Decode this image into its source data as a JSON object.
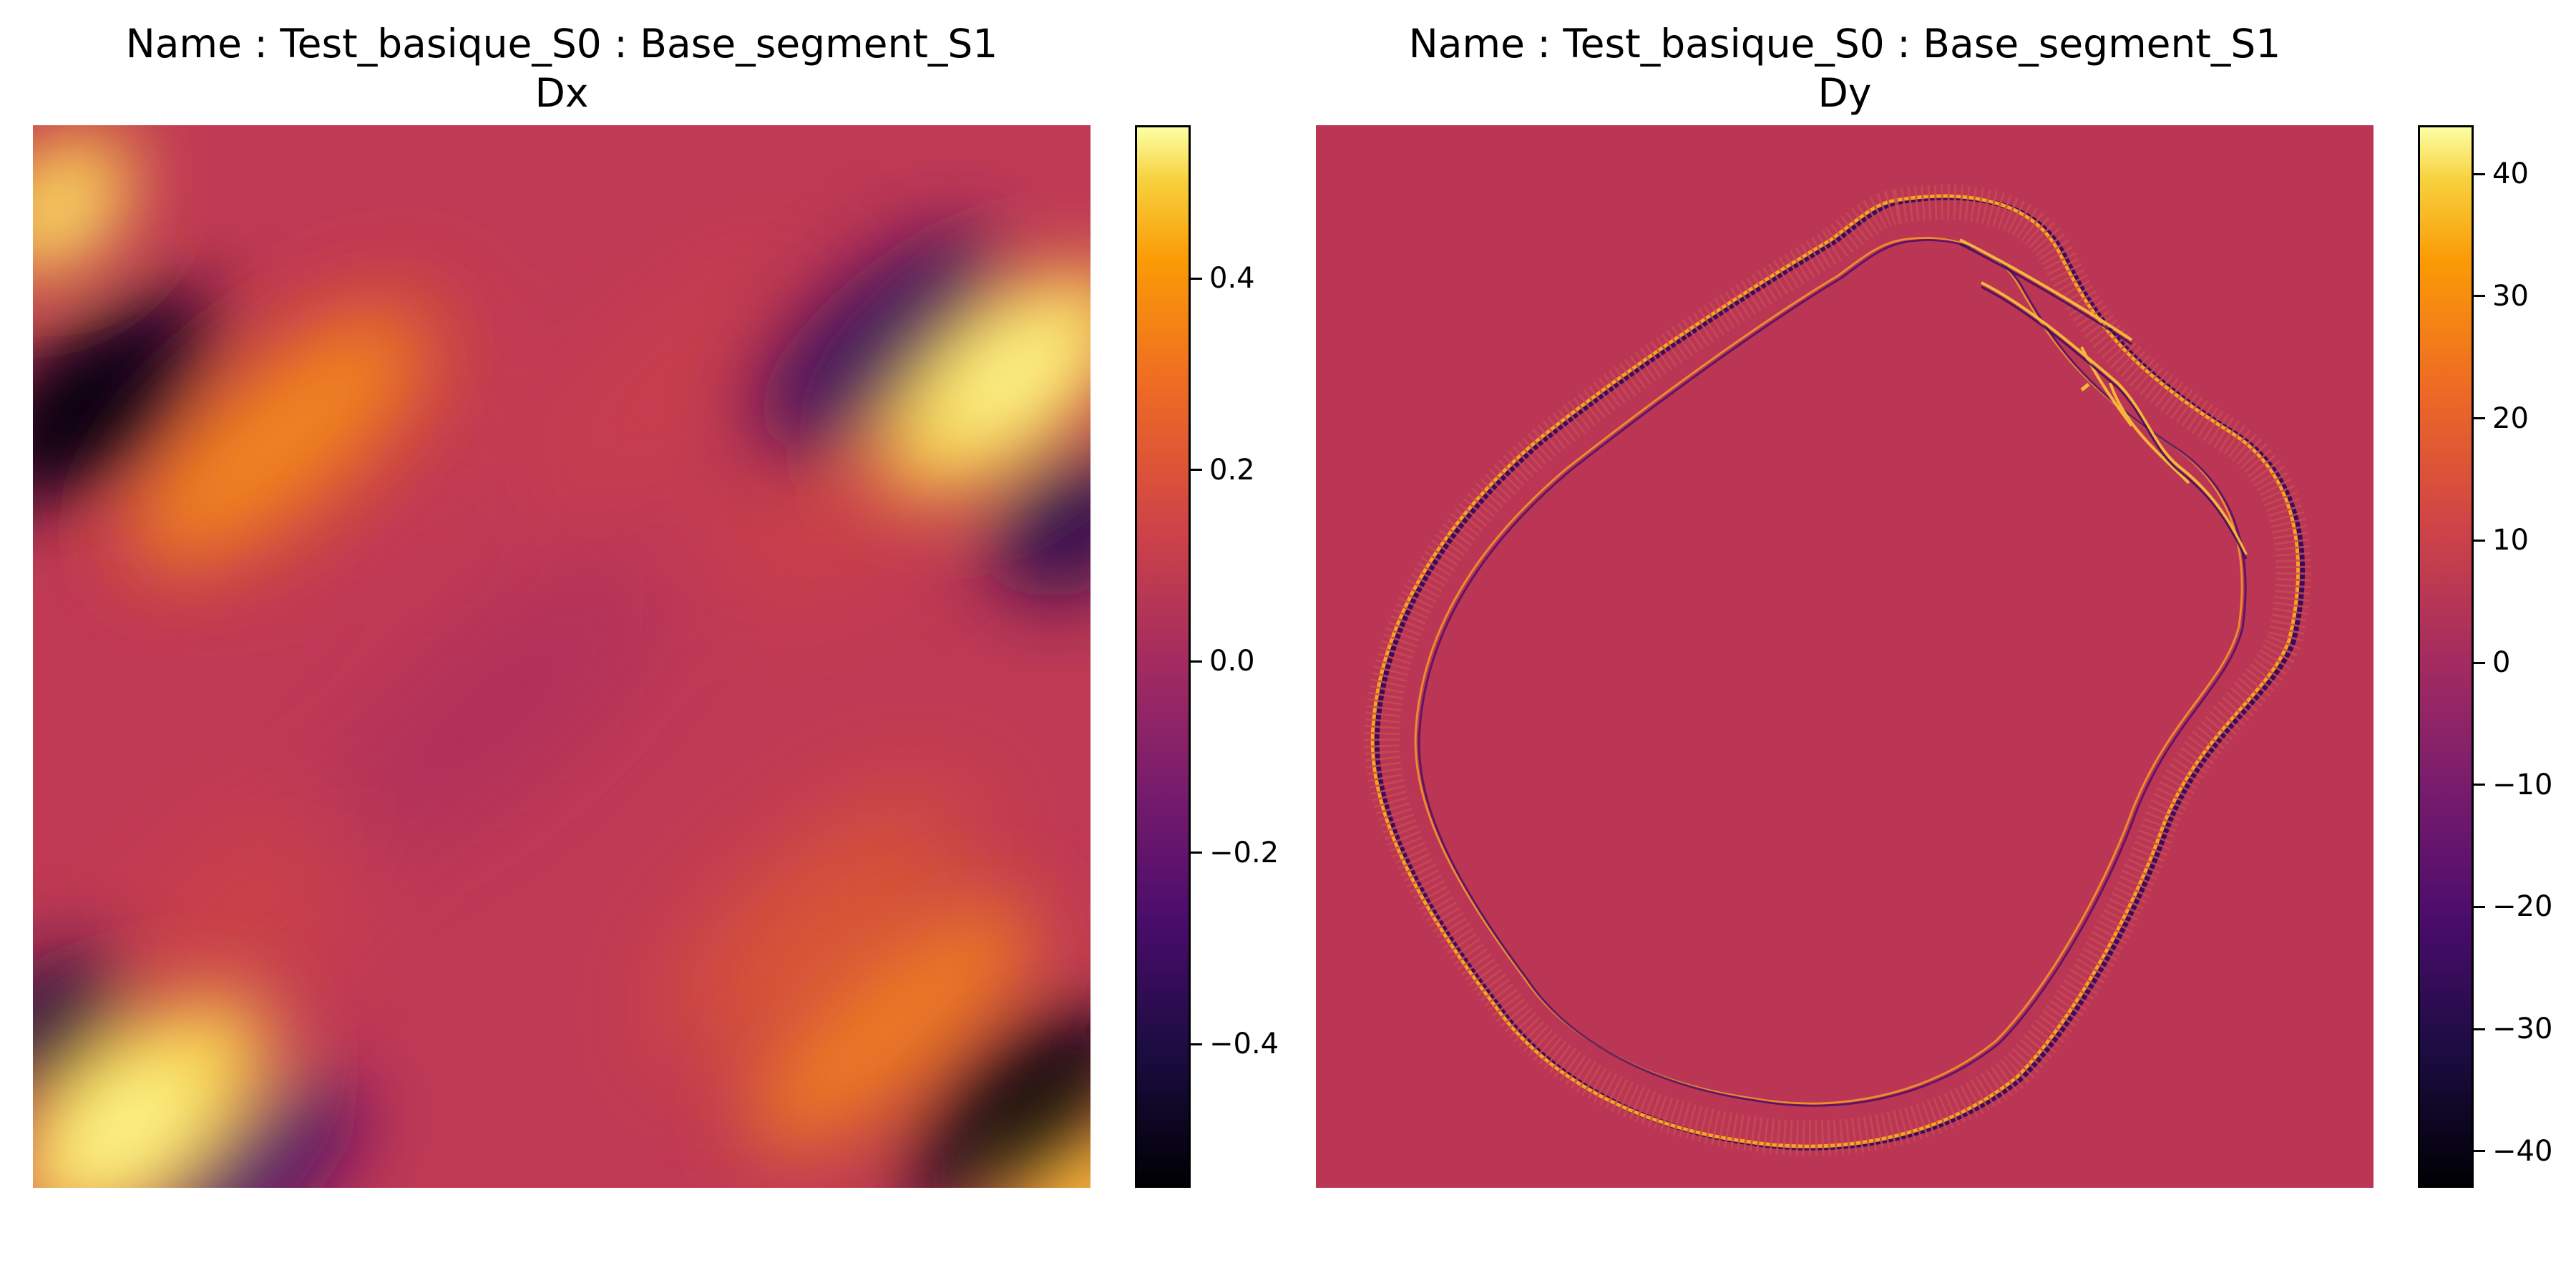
{
  "chart_data": [
    {
      "type": "heatmap",
      "title": "Name : Test_basique_S0 : Base_segment_S1",
      "subtitle": "Dx",
      "colormap": "inferno",
      "colorbar": {
        "vmin": -0.55,
        "vmax": 0.56,
        "ticks": [
          -0.4,
          -0.2,
          0.0,
          0.2,
          0.4
        ],
        "tick_labels": [
          "−0.4",
          "−0.2",
          "0.0",
          "0.2",
          "0.4"
        ]
      },
      "axes_visible": false
    },
    {
      "type": "heatmap",
      "title": "Name : Test_basique_S0 : Base_segment_S1",
      "subtitle": "Dy",
      "colormap": "inferno",
      "colorbar": {
        "vmin": -43,
        "vmax": 44,
        "ticks": [
          -40,
          -30,
          -20,
          -10,
          0,
          10,
          20,
          30,
          40
        ],
        "tick_labels": [
          "−40",
          "−30",
          "−20",
          "−10",
          "0",
          "10",
          "20",
          "30",
          "40"
        ]
      },
      "axes_visible": false
    }
  ]
}
